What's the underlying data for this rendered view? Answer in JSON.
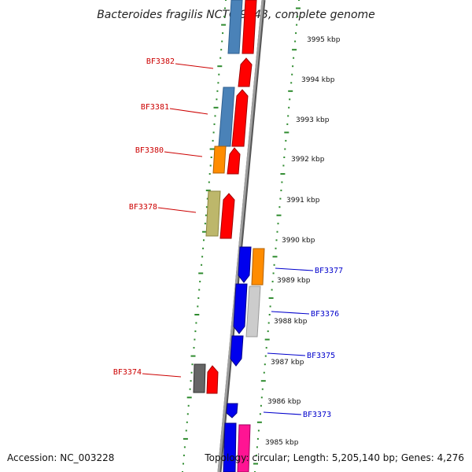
{
  "title": "Bacteroides fragilis NCTC 9343, complete genome",
  "footer": {
    "accession": "Accession: NC_003228",
    "summary": "Topology: circular; Length: 5,205,140 bp; Genes: 4,276"
  },
  "colors": {
    "backbone": "#8a8a8a",
    "ruler_dots": "#2e8b2e",
    "forward_label": "#cc0000",
    "reverse_label": "#0000cc",
    "red": "#ff0000",
    "blue": "#0000ee",
    "steel": "#4a82b8",
    "orange": "#ff8c00",
    "khaki": "#bdb76b",
    "gray": "#666666",
    "silver": "#cccccc",
    "pink": "#ff1493"
  },
  "kbp_ticks": [
    "3995 kbp",
    "3994 kbp",
    "3993 kbp",
    "3992 kbp",
    "3991 kbp",
    "3990 kbp",
    "3989 kbp",
    "3988 kbp",
    "3987 kbp",
    "3986 kbp",
    "3985 kbp"
  ],
  "gene_labels": {
    "forward": [
      "BF3382",
      "BF3381",
      "BF3380",
      "BF3378",
      "BF3374"
    ],
    "reverse": [
      "BF3377",
      "BF3376",
      "BF3375",
      "BF3373"
    ]
  }
}
